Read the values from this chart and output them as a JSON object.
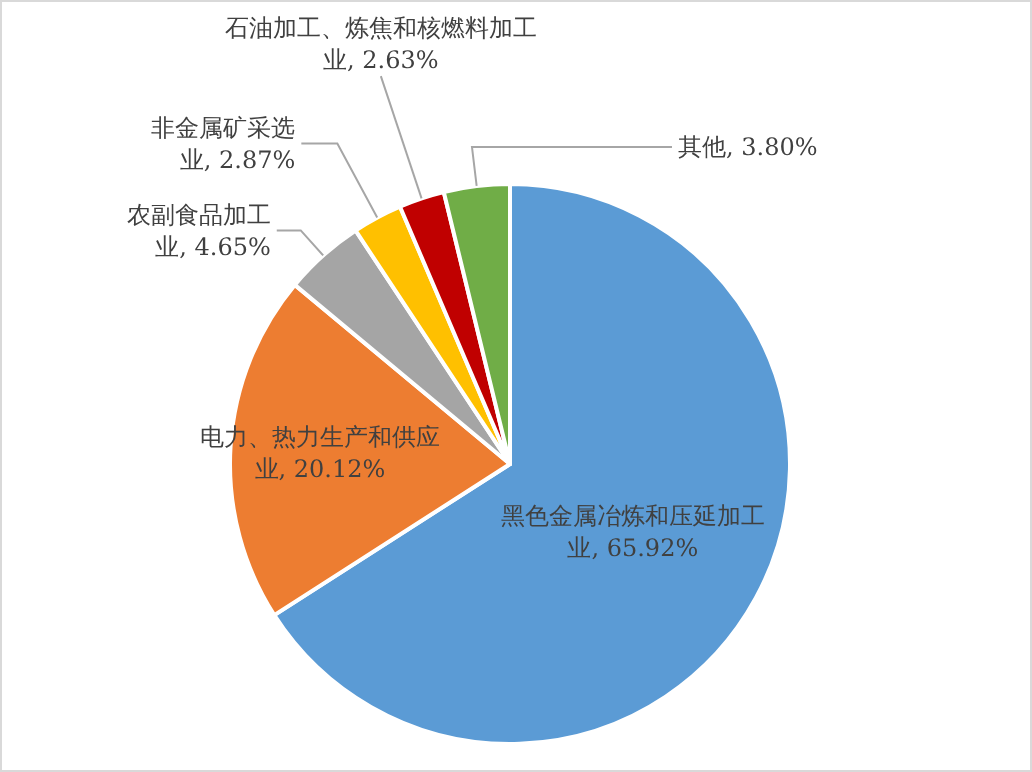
{
  "chart_data": {
    "type": "pie",
    "categories": [
      "黑色金属冶炼和压延加工业",
      "电力、热力生产和供应业",
      "农副食品加工业",
      "非金属矿采选业",
      "石油加工、炼焦和核燃料加工业",
      "其他"
    ],
    "values": [
      65.92,
      20.12,
      4.65,
      2.87,
      2.63,
      3.8
    ],
    "value_labels": [
      "65.92%",
      "20.12%",
      "4.65%",
      "2.87%",
      "2.63%",
      "3.80%"
    ],
    "colors": [
      "#5b9bd5",
      "#ed7d31",
      "#a5a5a5",
      "#ffc000",
      "#c00000",
      "#70ad47"
    ]
  }
}
